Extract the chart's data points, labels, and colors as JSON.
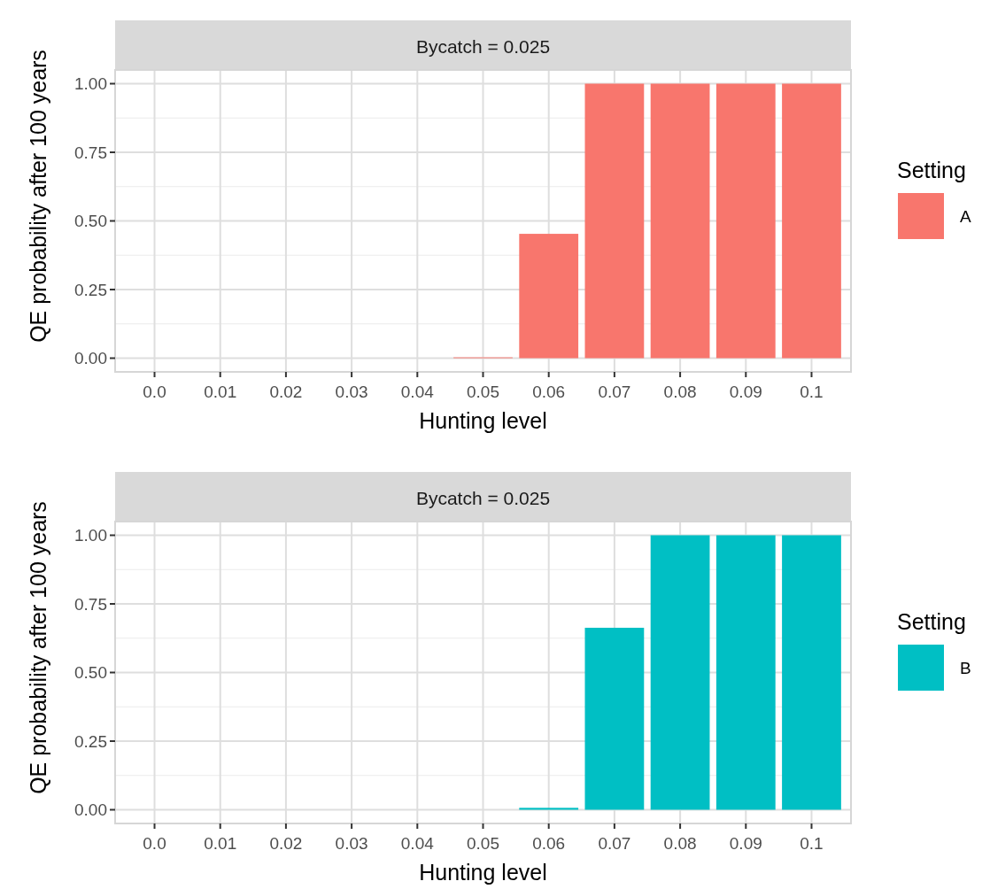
{
  "chart_data": [
    {
      "type": "bar",
      "title": "Bycatch = 0.025",
      "xlabel": "Hunting level",
      "ylabel": "QE probability after 100 years",
      "categories": [
        "0.0",
        "0.01",
        "0.02",
        "0.03",
        "0.04",
        "0.05",
        "0.06",
        "0.07",
        "0.08",
        "0.09",
        "0.1"
      ],
      "series": [
        {
          "name": "A",
          "color": "#f8766d",
          "values": [
            0,
            0,
            0,
            0,
            0,
            0.003,
            0.453,
            1,
            1,
            1,
            1
          ]
        }
      ],
      "legend_title": "Setting",
      "legend": "right",
      "ylim": [
        -0.05,
        1.05
      ],
      "yticks": [
        {
          "value": 0,
          "label": "0.00"
        },
        {
          "value": 0.25,
          "label": "0.25"
        },
        {
          "value": 0.5,
          "label": "0.50"
        },
        {
          "value": 0.75,
          "label": "0.75"
        },
        {
          "value": 1,
          "label": "1.00"
        }
      ],
      "grid": true
    },
    {
      "type": "bar",
      "title": "Bycatch = 0.025",
      "xlabel": "Hunting level",
      "ylabel": "QE probability after 100 years",
      "categories": [
        "0.0",
        "0.01",
        "0.02",
        "0.03",
        "0.04",
        "0.05",
        "0.06",
        "0.07",
        "0.08",
        "0.09",
        "0.1"
      ],
      "series": [
        {
          "name": "B",
          "color": "#00bfc4",
          "values": [
            0,
            0,
            0,
            0,
            0,
            0,
            0.007,
            0.663,
            1,
            1,
            1
          ]
        }
      ],
      "legend_title": "Setting",
      "legend": "right",
      "ylim": [
        -0.05,
        1.05
      ],
      "yticks": [
        {
          "value": 0,
          "label": "0.00"
        },
        {
          "value": 0.25,
          "label": "0.25"
        },
        {
          "value": 0.5,
          "label": "0.50"
        },
        {
          "value": 0.75,
          "label": "0.75"
        },
        {
          "value": 1,
          "label": "1.00"
        }
      ],
      "grid": true
    }
  ]
}
